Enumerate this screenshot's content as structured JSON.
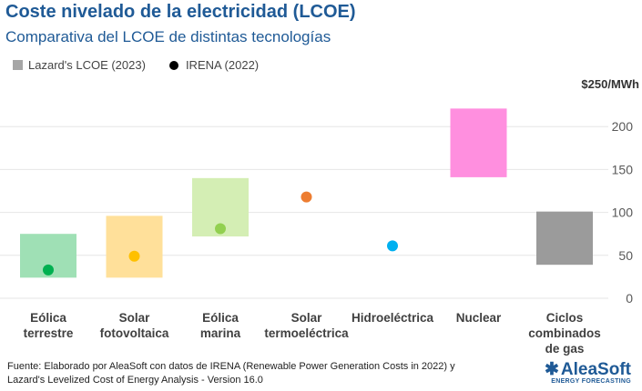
{
  "header": {
    "title": "Coste nivelado de la electricidad (LCOE)",
    "subtitle": "Comparativa del LCOE de distintas tecnologías"
  },
  "legend": {
    "lazard": {
      "label": "Lazard's LCOE (2023)",
      "color": "#a6a6a6"
    },
    "irena": {
      "label": "IRENA (2022)",
      "color": "#000000"
    }
  },
  "chart_data": {
    "type": "bar",
    "subtype": "floating-range-with-points",
    "unit_label": "$250/MWh",
    "ylim": [
      0,
      250
    ],
    "yticks": [
      0,
      50,
      100,
      150,
      200
    ],
    "grid": true,
    "legend_position": "top-left",
    "categories": [
      [
        "Eólica",
        "terrestre"
      ],
      [
        "Solar",
        "fotovoltaica"
      ],
      [
        "Eólica",
        "marina"
      ],
      [
        "Solar",
        "termoeléctrica"
      ],
      [
        "Hidroeléctrica"
      ],
      [
        "Nuclear"
      ],
      [
        "Ciclos",
        "combinados",
        "de gas"
      ]
    ],
    "series": [
      {
        "name": "Lazard's LCOE (2023)",
        "ranges": [
          [
            24,
            75
          ],
          [
            24,
            96
          ],
          [
            72,
            140
          ],
          null,
          null,
          [
            141,
            221
          ],
          [
            39,
            101
          ]
        ]
      },
      {
        "name": "IRENA (2022)",
        "values": [
          33,
          49,
          81,
          118,
          61,
          null,
          null
        ]
      }
    ],
    "bar_colors": [
      "#9fe0b5",
      "#ffe09a",
      "#d4eeb4",
      null,
      null,
      "#ff8fdf",
      "#9b9b9b"
    ],
    "point_colors": [
      "#00b050",
      "#ffc000",
      "#92d050",
      "#ed7d31",
      "#00b0f0",
      null,
      null
    ]
  },
  "footer": {
    "source_line1": "Fuente: Elaborado por AleaSoft con datos de IRENA (Renewable Power Generation Costs in 2022) y",
    "source_line2": "Lazard's Levelized Cost of Energy Analysis - Version 16.0",
    "logo_text": "AleaSoft",
    "logo_subtext": "ENERGY FORECASTING"
  }
}
